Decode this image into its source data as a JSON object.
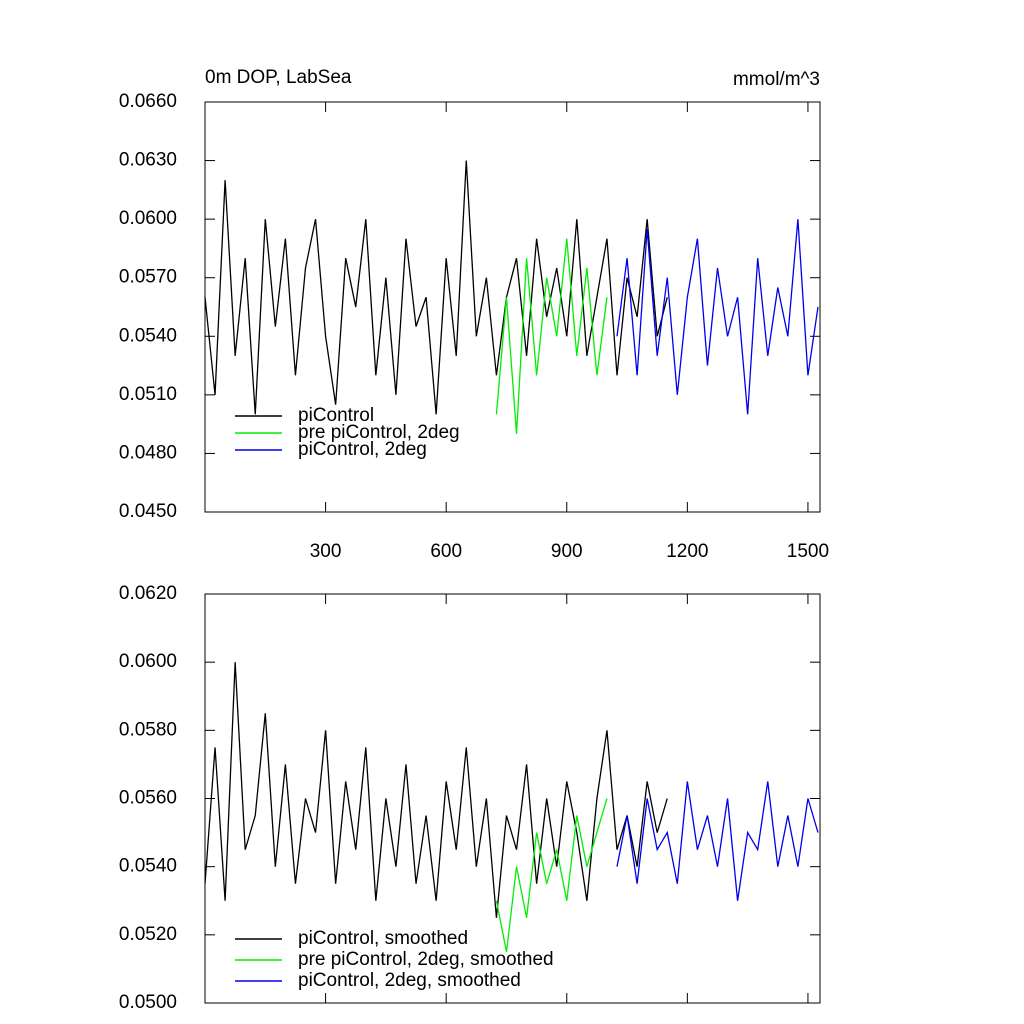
{
  "chart_data": [
    {
      "type": "line",
      "title": "0m DOP, LabSea",
      "units": "mmol/m^3",
      "xlim": [
        0,
        1530
      ],
      "ylim": [
        0.045,
        0.066
      ],
      "xticks": [
        300,
        600,
        900,
        1200,
        1500
      ],
      "yticks": [
        {
          "value": 0.045,
          "label": "0.0450"
        },
        {
          "value": 0.048,
          "label": "0.0480"
        },
        {
          "value": 0.051,
          "label": "0.0510"
        },
        {
          "value": 0.054,
          "label": "0.0540"
        },
        {
          "value": 0.057,
          "label": "0.0570"
        },
        {
          "value": 0.06,
          "label": "0.0600"
        },
        {
          "value": 0.063,
          "label": "0.0630"
        },
        {
          "value": 0.066,
          "label": "0.0660"
        }
      ],
      "legend": "lower left",
      "series": [
        {
          "name": "piControl",
          "color": "#000000",
          "x": [
            0,
            25,
            50,
            75,
            100,
            125,
            150,
            175,
            200,
            225,
            250,
            275,
            300,
            325,
            350,
            375,
            400,
            425,
            450,
            475,
            500,
            525,
            550,
            575,
            600,
            625,
            650,
            675,
            700,
            725,
            750,
            775,
            800,
            825,
            850,
            875,
            900,
            925,
            950,
            975,
            1000,
            1025,
            1050,
            1075,
            1100,
            1125,
            1150
          ],
          "values": [
            0.056,
            0.051,
            0.062,
            0.053,
            0.058,
            0.05,
            0.06,
            0.0545,
            0.059,
            0.052,
            0.0575,
            0.06,
            0.054,
            0.0505,
            0.058,
            0.0555,
            0.06,
            0.052,
            0.057,
            0.051,
            0.059,
            0.0545,
            0.056,
            0.05,
            0.058,
            0.053,
            0.063,
            0.054,
            0.057,
            0.052,
            0.056,
            0.058,
            0.053,
            0.059,
            0.055,
            0.0575,
            0.054,
            0.06,
            0.053,
            0.056,
            0.059,
            0.052,
            0.057,
            0.055,
            0.06,
            0.054,
            0.056
          ]
        },
        {
          "name": "pre piControl, 2deg",
          "color": "#00ee00",
          "x": [
            725,
            750,
            775,
            800,
            825,
            850,
            875,
            900,
            925,
            950,
            975,
            1000
          ],
          "values": [
            0.05,
            0.056,
            0.049,
            0.058,
            0.052,
            0.057,
            0.054,
            0.059,
            0.053,
            0.0575,
            0.052,
            0.056
          ]
        },
        {
          "name": "piControl, 2deg",
          "color": "#0000ee",
          "x": [
            1025,
            1050,
            1075,
            1100,
            1125,
            1150,
            1175,
            1200,
            1225,
            1250,
            1275,
            1300,
            1325,
            1350,
            1375,
            1400,
            1425,
            1450,
            1475,
            1500,
            1525
          ],
          "values": [
            0.054,
            0.058,
            0.052,
            0.0595,
            0.053,
            0.057,
            0.051,
            0.056,
            0.059,
            0.0525,
            0.0575,
            0.054,
            0.056,
            0.05,
            0.058,
            0.053,
            0.0565,
            0.054,
            0.06,
            0.052,
            0.0555
          ]
        }
      ]
    },
    {
      "type": "line",
      "xlim": [
        0,
        1530
      ],
      "ylim": [
        0.05,
        0.062
      ],
      "xticks": [
        300,
        600,
        900,
        1200,
        1500
      ],
      "yticks": [
        {
          "value": 0.05,
          "label": "0.0500"
        },
        {
          "value": 0.052,
          "label": "0.0520"
        },
        {
          "value": 0.054,
          "label": "0.0540"
        },
        {
          "value": 0.056,
          "label": "0.0560"
        },
        {
          "value": 0.058,
          "label": "0.0580"
        },
        {
          "value": 0.06,
          "label": "0.0600"
        },
        {
          "value": 0.062,
          "label": "0.0620"
        }
      ],
      "legend": "lower left",
      "series": [
        {
          "name": "piControl, smoothed",
          "color": "#000000",
          "x": [
            0,
            25,
            50,
            75,
            100,
            125,
            150,
            175,
            200,
            225,
            250,
            275,
            300,
            325,
            350,
            375,
            400,
            425,
            450,
            475,
            500,
            525,
            550,
            575,
            600,
            625,
            650,
            675,
            700,
            725,
            750,
            775,
            800,
            825,
            850,
            875,
            900,
            925,
            950,
            975,
            1000,
            1025,
            1050,
            1075,
            1100,
            1125,
            1150
          ],
          "values": [
            0.0535,
            0.0575,
            0.053,
            0.06,
            0.0545,
            0.0555,
            0.0585,
            0.054,
            0.057,
            0.0535,
            0.056,
            0.055,
            0.058,
            0.0535,
            0.0565,
            0.0545,
            0.0575,
            0.053,
            0.056,
            0.054,
            0.057,
            0.0535,
            0.0555,
            0.053,
            0.0565,
            0.0545,
            0.0575,
            0.054,
            0.056,
            0.0525,
            0.0555,
            0.0545,
            0.057,
            0.0535,
            0.056,
            0.054,
            0.0565,
            0.055,
            0.053,
            0.056,
            0.058,
            0.0545,
            0.0555,
            0.054,
            0.0565,
            0.055,
            0.056
          ]
        },
        {
          "name": "pre piControl, 2deg, smoothed",
          "color": "#00ee00",
          "x": [
            725,
            750,
            775,
            800,
            825,
            850,
            875,
            900,
            925,
            950,
            975,
            1000
          ],
          "values": [
            0.053,
            0.0515,
            0.054,
            0.0525,
            0.055,
            0.0535,
            0.0545,
            0.053,
            0.0555,
            0.054,
            0.055,
            0.056
          ]
        },
        {
          "name": "piControl, 2deg, smoothed",
          "color": "#0000ee",
          "x": [
            1025,
            1050,
            1075,
            1100,
            1125,
            1150,
            1175,
            1200,
            1225,
            1250,
            1275,
            1300,
            1325,
            1350,
            1375,
            1400,
            1425,
            1450,
            1475,
            1500,
            1525
          ],
          "values": [
            0.054,
            0.0555,
            0.0535,
            0.056,
            0.0545,
            0.055,
            0.0535,
            0.0565,
            0.0545,
            0.0555,
            0.054,
            0.056,
            0.053,
            0.055,
            0.0545,
            0.0565,
            0.054,
            0.0555,
            0.054,
            0.056,
            0.055
          ]
        }
      ]
    }
  ]
}
